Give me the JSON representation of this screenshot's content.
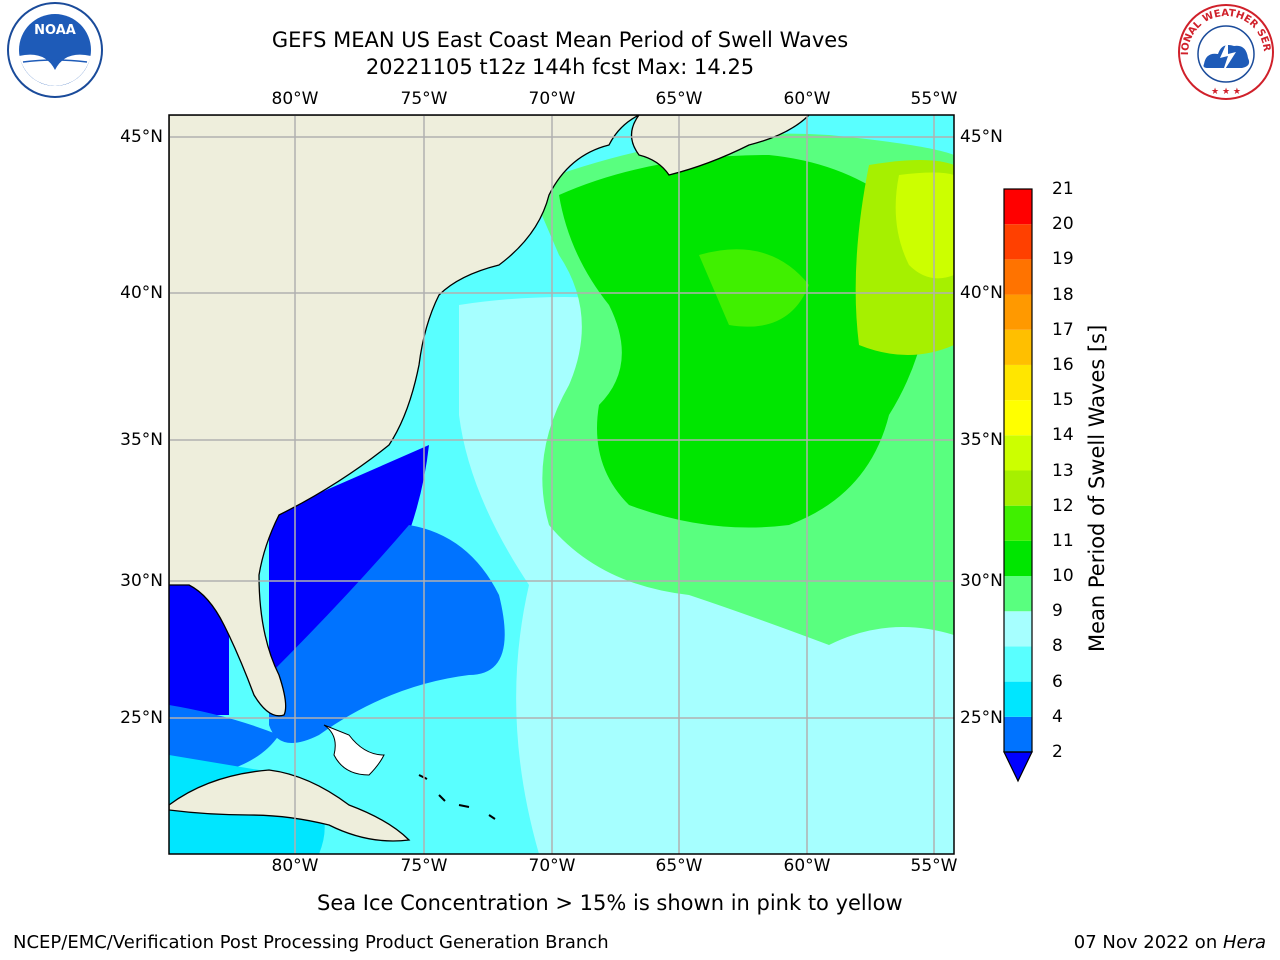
{
  "header": {
    "title": "GEFS MEAN US East Coast Mean Period of Swell Waves",
    "subtitle": "20221105 t12z 144h fcst   Max: 14.25"
  },
  "logos": {
    "noaa_text": "NOAA",
    "nws_text": "NATIONAL WEATHER SERVICE"
  },
  "map": {
    "lon_labels": [
      "80°W",
      "75°W",
      "70°W",
      "65°W",
      "60°W",
      "55°W"
    ],
    "lat_labels": [
      "45°N",
      "40°N",
      "35°N",
      "30°N",
      "25°N"
    ],
    "colors": {
      "land": "#eeeedc",
      "grid": "#b0b0b0",
      "coast": "#000000"
    }
  },
  "colorbar": {
    "title": "Mean Period of Swell Waves [s]",
    "labels": [
      "2",
      "4",
      "6",
      "8",
      "9",
      "10",
      "11",
      "12",
      "13",
      "14",
      "15",
      "16",
      "17",
      "18",
      "19",
      "20",
      "21"
    ],
    "extend_color": "#0000ff",
    "colors": [
      "#0073ff",
      "#00e6ff",
      "#59ffff",
      "#a6ffff",
      "#59ff7f",
      "#00e600",
      "#40f000",
      "#a6f000",
      "#ccff00",
      "#ffff00",
      "#ffe600",
      "#ffbf00",
      "#ff9900",
      "#ff7300",
      "#ff4000",
      "#ff0000"
    ]
  },
  "footer": {
    "note": "Sea Ice Concentration > 15% is shown in pink to yellow",
    "left": "NCEP/EMC/Verification Post Processing Product Generation Branch",
    "right_date": "07 Nov 2022 on ",
    "right_host": "Hera"
  }
}
